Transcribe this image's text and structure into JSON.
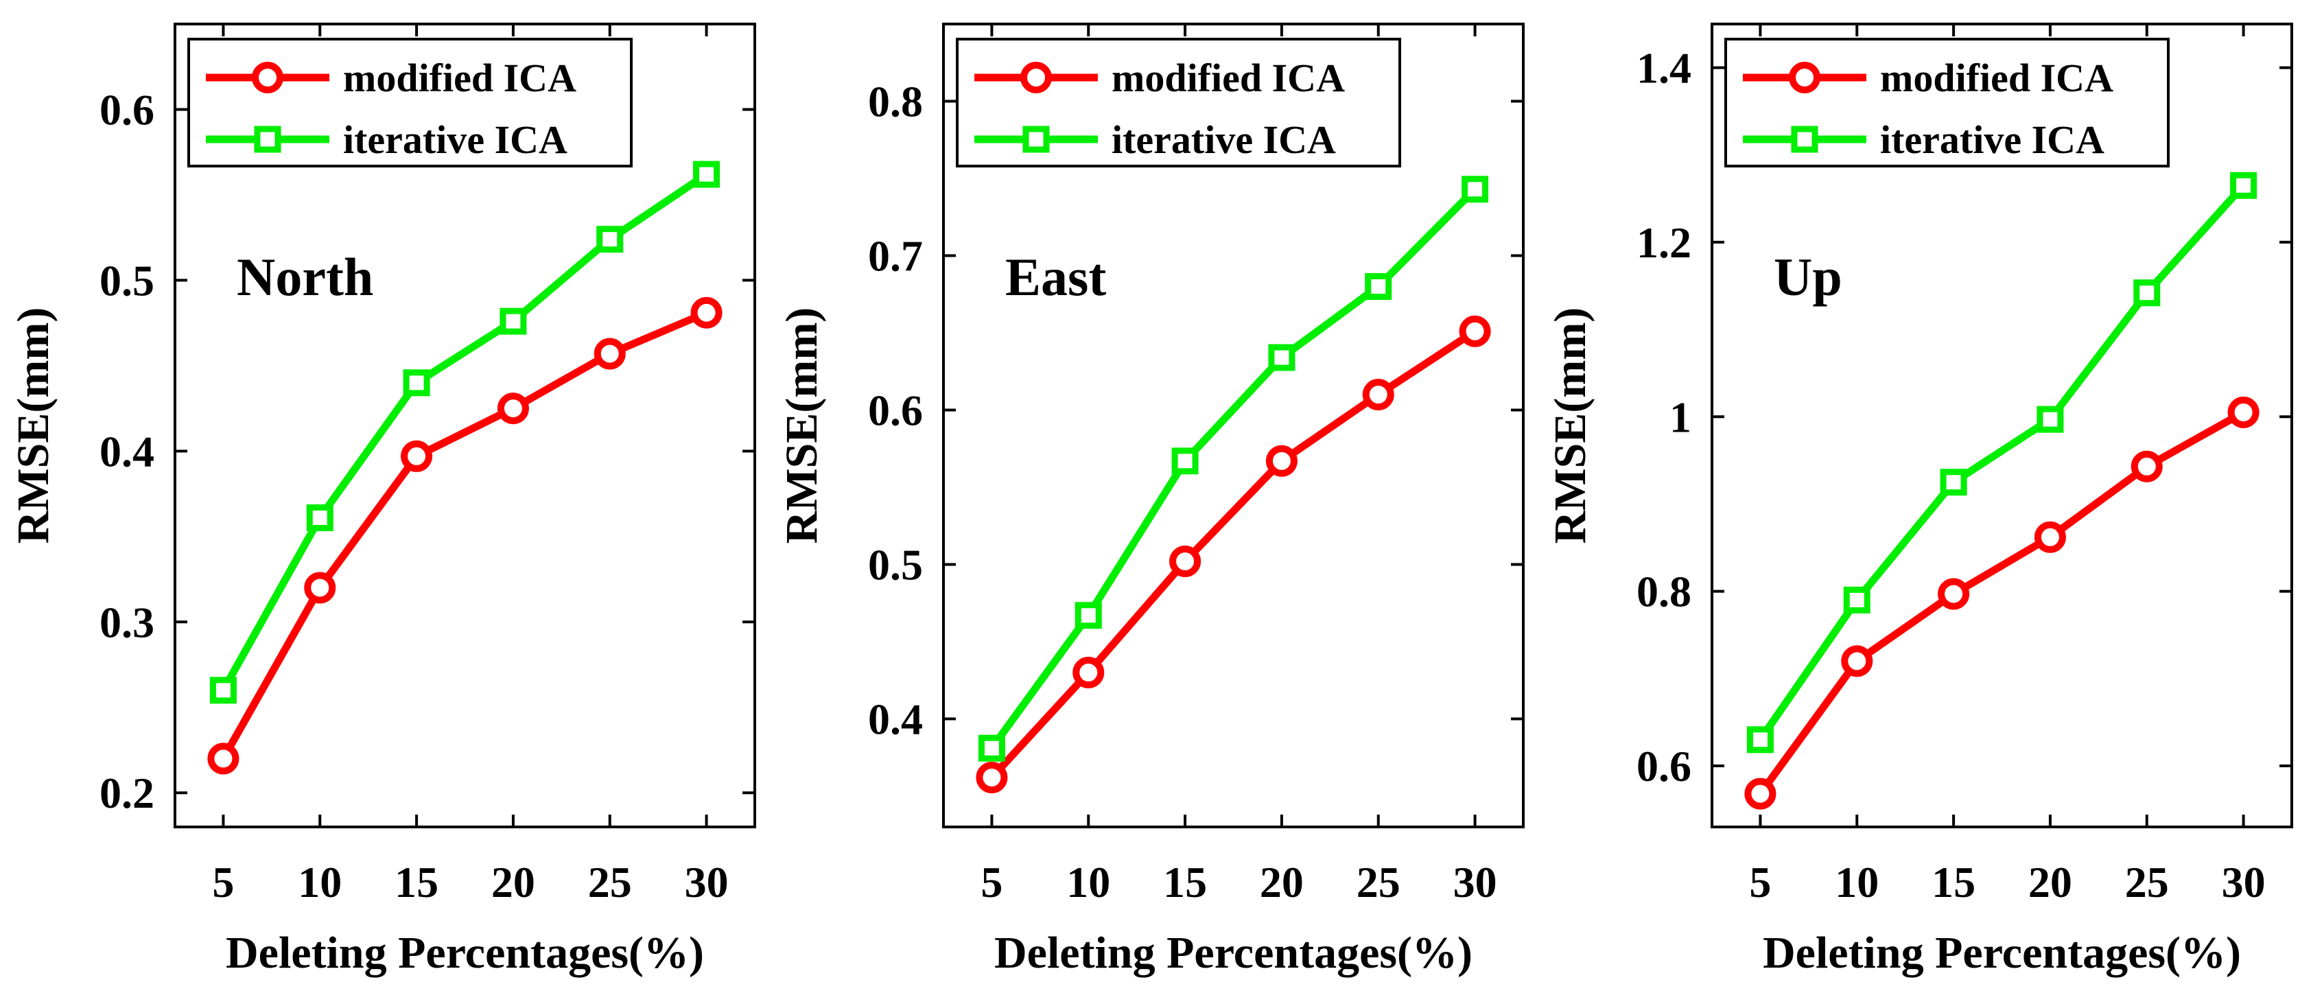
{
  "figure": {
    "description_free": true
  },
  "legend_entries": [
    "modified ICA",
    "iterative ICA"
  ],
  "colors": {
    "modified": "#ff0000",
    "iterative": "#00ee00",
    "axis": "#000000"
  },
  "chart_data": [
    {
      "type": "line",
      "title": "North",
      "xlabel": "Deleting Percentages(%)",
      "ylabel": "RMSE(mm)",
      "x": [
        5,
        10,
        15,
        20,
        25,
        30
      ],
      "xlim": [
        2.5,
        32.5
      ],
      "ylim": [
        0.18,
        0.65
      ],
      "yticks": [
        0.2,
        0.3,
        0.4,
        0.5,
        0.6
      ],
      "ytick_labels": [
        "0.2",
        "0.3",
        "0.4",
        "0.5",
        "0.6"
      ],
      "xtick_labels": [
        "5",
        "10",
        "15",
        "20",
        "25",
        "30"
      ],
      "legend_position": "top-left",
      "series": [
        {
          "name": "modified ICA",
          "marker": "circle",
          "values": [
            0.22,
            0.32,
            0.397,
            0.425,
            0.457,
            0.481
          ]
        },
        {
          "name": "iterative ICA",
          "marker": "square",
          "values": [
            0.26,
            0.361,
            0.44,
            0.476,
            0.524,
            0.562
          ]
        }
      ]
    },
    {
      "type": "line",
      "title": "East",
      "xlabel": "Deleting Percentages(%)",
      "ylabel": "RMSE(mm)",
      "x": [
        5,
        10,
        15,
        20,
        25,
        30
      ],
      "xlim": [
        2.5,
        32.5
      ],
      "ylim": [
        0.33,
        0.85
      ],
      "yticks": [
        0.4,
        0.5,
        0.6,
        0.7,
        0.8
      ],
      "ytick_labels": [
        "0.4",
        "0.5",
        "0.6",
        "0.7",
        "0.8"
      ],
      "xtick_labels": [
        "5",
        "10",
        "15",
        "20",
        "25",
        "30"
      ],
      "legend_position": "top-left",
      "series": [
        {
          "name": "modified ICA",
          "marker": "circle",
          "values": [
            0.362,
            0.43,
            0.502,
            0.567,
            0.61,
            0.651
          ]
        },
        {
          "name": "iterative ICA",
          "marker": "square",
          "values": [
            0.381,
            0.467,
            0.567,
            0.634,
            0.68,
            0.743
          ]
        }
      ]
    },
    {
      "type": "line",
      "title": "Up",
      "xlabel": "Deleting Percentages(%)",
      "ylabel": "RMSE(mm)",
      "x": [
        5,
        10,
        15,
        20,
        25,
        30
      ],
      "xlim": [
        2.5,
        32.5
      ],
      "ylim": [
        0.53,
        1.45
      ],
      "yticks": [
        0.6,
        0.8,
        1.0,
        1.2,
        1.4
      ],
      "ytick_labels": [
        "0.6",
        "0.8",
        "1",
        "1.2",
        "1.4"
      ],
      "xtick_labels": [
        "5",
        "10",
        "15",
        "20",
        "25",
        "30"
      ],
      "legend_position": "top-left",
      "series": [
        {
          "name": "modified ICA",
          "marker": "circle",
          "values": [
            0.568,
            0.72,
            0.797,
            0.862,
            0.943,
            1.005
          ]
        },
        {
          "name": "iterative ICA",
          "marker": "square",
          "values": [
            0.63,
            0.79,
            0.925,
            0.997,
            1.142,
            1.265
          ]
        }
      ]
    }
  ]
}
